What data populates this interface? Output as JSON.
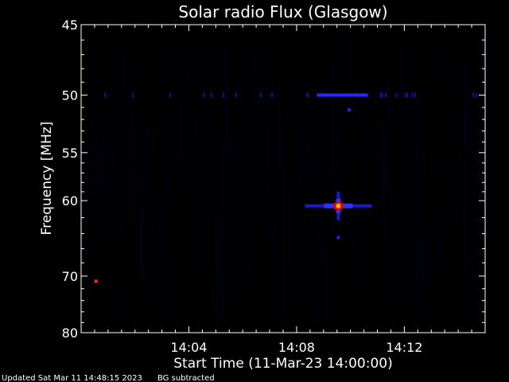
{
  "chart_data": {
    "type": "heatmap",
    "title": "Solar radio Flux (Glasgow)",
    "ylabel": "Frequency [MHz]",
    "xlabel": "Start Time (11-Mar-23 14:00:00)",
    "x_unit": "minutes after 14:00:00",
    "xlim": [
      0,
      15
    ],
    "ylim": [
      45,
      80
    ],
    "y_scale": "reciprocal (inverted, low frequency at top)",
    "x_ticks": [
      {
        "value": 4,
        "label": "14:04"
      },
      {
        "value": 8,
        "label": "14:08"
      },
      {
        "value": 12,
        "label": "14:12"
      }
    ],
    "y_ticks": [
      {
        "value": 45,
        "label": "45"
      },
      {
        "value": 50,
        "label": "50"
      },
      {
        "value": 55,
        "label": "55"
      },
      {
        "value": 60,
        "label": "60"
      },
      {
        "value": 70,
        "label": "70"
      },
      {
        "value": 80,
        "label": "80"
      }
    ],
    "colormap": [
      "#000000",
      "#0000ff",
      "#ff0000",
      "#ffff00"
    ],
    "features": [
      {
        "kind": "burst",
        "time": 9.55,
        "freq": 60.6,
        "intensity": 1.0
      },
      {
        "kind": "hband",
        "time_start": 8.75,
        "time_end": 10.65,
        "freq": 50.0,
        "intensity": 0.45
      },
      {
        "kind": "spot",
        "time": 0.55,
        "freq": 70.8,
        "intensity": 0.75
      },
      {
        "kind": "spot",
        "time": 9.55,
        "freq": 64.5,
        "intensity": 0.35
      },
      {
        "kind": "spot",
        "time": 9.95,
        "freq": 51.2,
        "intensity": 0.3
      }
    ]
  },
  "footer": {
    "updated": "Updated Sat Mar 11 14:48:15 2023",
    "note": "BG subtracted"
  }
}
